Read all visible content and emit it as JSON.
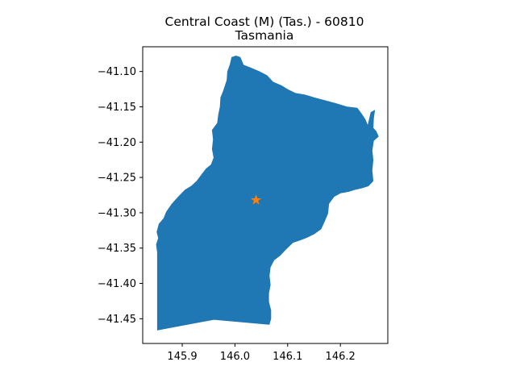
{
  "figure": {
    "title_line1": "Central Coast (M) (Tas.) - 60810",
    "title_line2": "Tasmania"
  },
  "map": {
    "region_fill": "#1f77b4",
    "marker_color": "#ff7f0e",
    "marker_symbol": "star-icon",
    "centroid": {
      "lon": 146.04,
      "lat": -41.282
    }
  },
  "chart_data": {
    "type": "map",
    "title": "Central Coast (M) (Tas.) - 60810\nTasmania",
    "xlim": [
      145.825,
      146.29
    ],
    "ylim": [
      -41.485,
      -41.065
    ],
    "xticks": [
      145.9,
      146.0,
      146.1,
      146.2
    ],
    "xtick_labels": [
      "145.9",
      "146.0",
      "146.1",
      "146.2"
    ],
    "yticks": [
      -41.1,
      -41.15,
      -41.2,
      -41.25,
      -41.3,
      -41.35,
      -41.4,
      -41.45
    ],
    "ytick_labels": [
      "−41.10",
      "−41.15",
      "−41.20",
      "−41.25",
      "−41.30",
      "−41.35",
      "−41.40",
      "−41.45"
    ],
    "series": [
      {
        "name": "",
        "kind": "polygon",
        "points": [
          [
            145.853,
            -41.466
          ],
          [
            145.853,
            -41.356
          ],
          [
            145.851,
            -41.345
          ],
          [
            145.855,
            -41.336
          ],
          [
            145.852,
            -41.327
          ],
          [
            145.856,
            -41.316
          ],
          [
            145.865,
            -41.308
          ],
          [
            145.87,
            -41.299
          ],
          [
            145.88,
            -41.288
          ],
          [
            145.892,
            -41.278
          ],
          [
            145.905,
            -41.268
          ],
          [
            145.918,
            -41.262
          ],
          [
            145.928,
            -41.255
          ],
          [
            145.937,
            -41.246
          ],
          [
            145.945,
            -41.238
          ],
          [
            145.955,
            -41.232
          ],
          [
            145.96,
            -41.222
          ],
          [
            145.957,
            -41.21
          ],
          [
            145.959,
            -41.196
          ],
          [
            145.957,
            -41.183
          ],
          [
            145.967,
            -41.173
          ],
          [
            145.969,
            -41.161
          ],
          [
            145.972,
            -41.15
          ],
          [
            145.973,
            -41.137
          ],
          [
            145.978,
            -41.128
          ],
          [
            145.985,
            -41.112
          ],
          [
            145.986,
            -41.1
          ],
          [
            145.991,
            -41.09
          ],
          [
            145.994,
            -41.08
          ],
          [
            146.002,
            -41.078
          ],
          [
            146.01,
            -41.08
          ],
          [
            146.016,
            -41.091
          ],
          [
            146.03,
            -41.095
          ],
          [
            146.046,
            -41.1
          ],
          [
            146.061,
            -41.106
          ],
          [
            146.072,
            -41.115
          ],
          [
            146.088,
            -41.12
          ],
          [
            146.101,
            -41.126
          ],
          [
            146.115,
            -41.131
          ],
          [
            146.132,
            -41.133
          ],
          [
            146.15,
            -41.137
          ],
          [
            146.17,
            -41.141
          ],
          [
            146.19,
            -41.145
          ],
          [
            146.212,
            -41.15
          ],
          [
            146.232,
            -41.152
          ],
          [
            146.24,
            -41.16
          ],
          [
            146.247,
            -41.168
          ],
          [
            146.252,
            -41.177
          ],
          [
            146.258,
            -41.158
          ],
          [
            146.265,
            -41.155
          ],
          [
            146.263,
            -41.166
          ],
          [
            146.262,
            -41.18
          ],
          [
            146.268,
            -41.185
          ],
          [
            146.272,
            -41.192
          ],
          [
            146.263,
            -41.198
          ],
          [
            146.26,
            -41.212
          ],
          [
            146.262,
            -41.225
          ],
          [
            146.26,
            -41.24
          ],
          [
            146.262,
            -41.255
          ],
          [
            146.253,
            -41.262
          ],
          [
            146.24,
            -41.265
          ],
          [
            146.228,
            -41.267
          ],
          [
            146.215,
            -41.27
          ],
          [
            146.2,
            -41.272
          ],
          [
            146.188,
            -41.277
          ],
          [
            146.178,
            -41.287
          ],
          [
            146.176,
            -41.301
          ],
          [
            146.17,
            -41.312
          ],
          [
            146.163,
            -41.323
          ],
          [
            146.15,
            -41.33
          ],
          [
            146.136,
            -41.335
          ],
          [
            146.122,
            -41.339
          ],
          [
            146.11,
            -41.342
          ],
          [
            146.096,
            -41.352
          ],
          [
            146.086,
            -41.36
          ],
          [
            146.074,
            -41.367
          ],
          [
            146.067,
            -41.377
          ],
          [
            146.065,
            -41.389
          ],
          [
            146.067,
            -41.402
          ],
          [
            146.064,
            -41.414
          ],
          [
            146.064,
            -41.426
          ],
          [
            146.068,
            -41.438
          ],
          [
            146.068,
            -41.45
          ],
          [
            146.065,
            -41.458
          ],
          [
            145.96,
            -41.451
          ],
          [
            145.853,
            -41.466
          ]
        ]
      },
      {
        "name": "",
        "kind": "marker",
        "x": [
          146.04
        ],
        "y": [
          -41.282
        ]
      }
    ],
    "grid": false,
    "legend": "none"
  }
}
